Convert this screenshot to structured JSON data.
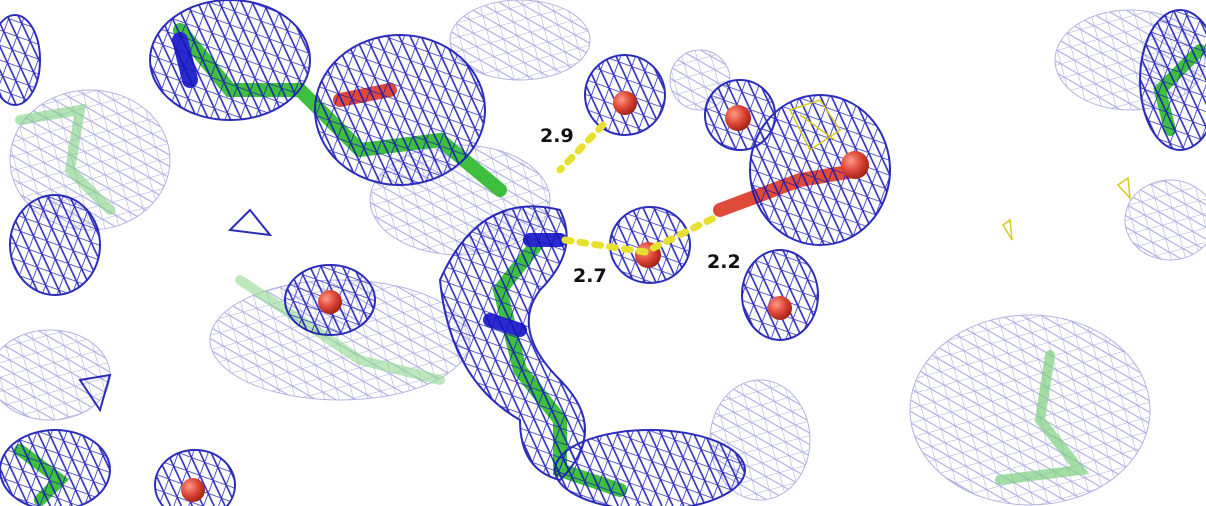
{
  "distance_labels": [
    "2.9",
    "2.7",
    "2.2"
  ]
}
